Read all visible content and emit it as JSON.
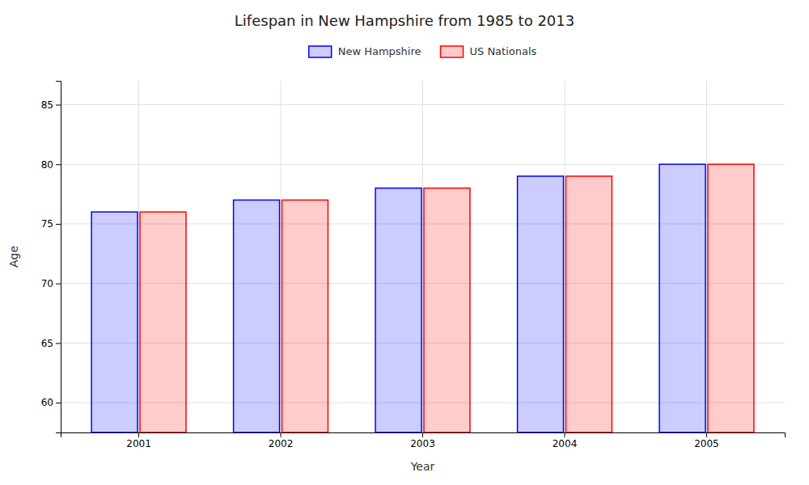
{
  "chart_data": {
    "type": "bar",
    "title": "Lifespan in New Hampshire from 1985 to 2013",
    "x_label": "Year",
    "y_label": "Age",
    "categories": [
      "2001",
      "2002",
      "2003",
      "2004",
      "2005"
    ],
    "series": [
      {
        "name": "New Hampshire",
        "color": "#0000ff",
        "values": [
          76,
          77,
          78,
          79,
          80
        ]
      },
      {
        "name": "US Nationals",
        "color": "#ff0000",
        "values": [
          76,
          77,
          78,
          79,
          80
        ]
      }
    ],
    "ylim": [
      57.5,
      87
    ],
    "yticks": [
      60,
      65,
      70,
      75,
      80,
      85
    ],
    "grid": true,
    "legend": "top"
  }
}
